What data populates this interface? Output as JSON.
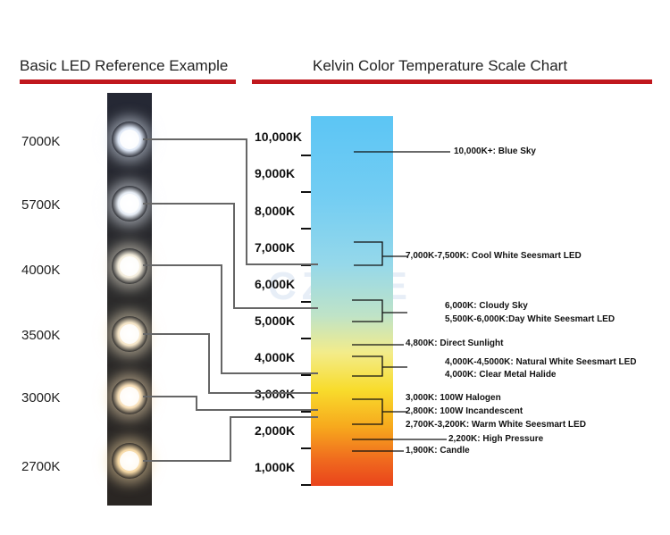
{
  "left_title": "Basic LED Reference Example",
  "right_title": "Kelvin Color Temperature Scale Chart",
  "leds": [
    {
      "label": "7000K",
      "color": "#dfe8f6"
    },
    {
      "label": "5700K",
      "color": "#e8eef6"
    },
    {
      "label": "4000K",
      "color": "#f4eddc"
    },
    {
      "label": "3500K",
      "color": "#f6e6c8"
    },
    {
      "label": "3000K",
      "color": "#f7dfb8"
    },
    {
      "label": "2700K",
      "color": "#f6d9a6"
    }
  ],
  "scale": {
    "ticks": [
      "10,000K",
      "9,000K",
      "8,000K",
      "7,000K",
      "6,000K",
      "5,000K",
      "4,000K",
      "3,000K",
      "2,000K",
      "1,000K"
    ],
    "colors": {
      "top": "#5cc5f4",
      "middle": "#f8dc2c",
      "bottom": "#e9431c"
    }
  },
  "annotations": [
    "10,000K+: Blue Sky",
    "7,000K-7,500K: Cool White Seesmart LED",
    "6,000K: Cloudy Sky",
    "5,500K-6,000K:Day White Seesmart LED",
    "4,800K: Direct Sunlight",
    "4,000K-4,5000K: Natural White Seesmart LED",
    "4,000K: Clear Metal Halide",
    "3,000K: 100W Halogen",
    "2,800K: 100W Incandescent",
    "2,700K-3,200K: Warm White Seesmart LED",
    "2,200K: High Pressure",
    "1,900K: Candle"
  ],
  "watermark": "CZINE",
  "accent_color": "#c0171d"
}
